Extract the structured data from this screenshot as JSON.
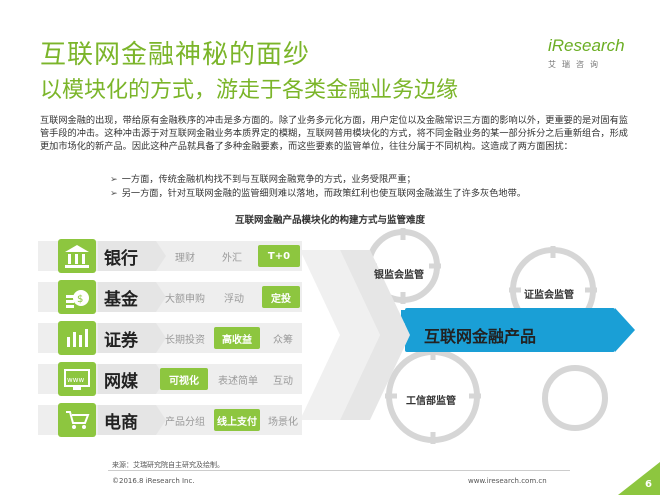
{
  "header": {
    "title": "互联网金融神秘的面纱",
    "subtitle": "以模块化的方式，游走于各类金融业务边缘"
  },
  "logo": {
    "brand": "iResearch",
    "sub": "艾瑞咨询"
  },
  "body": {
    "paragraph": "互联网金融的出现，带给原有金融秩序的冲击是多方面的。除了业务多元化方面，用户定位以及金融常识三方面的影响以外，更重要的是对固有监管手段的冲击。这种冲击源于对互联网金融业务本质界定的模糊，互联网普用模块化的方式，将不同金融业务的某一部分拆分之后重新组合，形成更加市场化的新产品。因此这种产品就具备了多种金融要素，而这些要素的监管单位，往往分属于不同机构。这造成了两方面困扰：",
    "bullet1": "一方面，传统金融机构找不到与互联网金融竞争的方式，业务受限严重；",
    "bullet2": "另一方面，针对互联网金融的监管细则难以落地，而政策红利也使互联网金融滋生了许多灰色地带。"
  },
  "diagram": {
    "title": "互联网金融产品模块化的构建方式与监管难度",
    "rows": [
      {
        "icon": "bank-icon",
        "label": "银行",
        "tags": [
          "理财",
          "外汇",
          "T+0"
        ],
        "highlight": 2
      },
      {
        "icon": "fund-icon",
        "label": "基金",
        "tags": [
          "大额申购",
          "浮动",
          "定投"
        ],
        "highlight": 2
      },
      {
        "icon": "stock-icon",
        "label": "证券",
        "tags": [
          "长期投资",
          "高收益",
          "众筹"
        ],
        "highlight": 1
      },
      {
        "icon": "www-icon",
        "label": "网媒",
        "tags": [
          "可视化",
          "表述简单",
          "互动"
        ],
        "highlight": 0
      },
      {
        "icon": "ecommerce-icon",
        "label": "电商",
        "tags": [
          "产品分组",
          "线上支付",
          "场景化"
        ],
        "highlight": 1
      }
    ],
    "center": "互联网金融产品",
    "regulators": [
      "银监会监管",
      "证监会监管",
      "工信部监管"
    ]
  },
  "footer": {
    "source": "来源：艾瑞研究院自主研究及绘制。",
    "copyright": "©2016.8 iResearch Inc.",
    "url": "www.iresearch.com.cn",
    "page": "6"
  },
  "colors": {
    "accent": "#8dc63f",
    "title": "#7bb52a",
    "gear_blue": "#1a9fd6"
  }
}
